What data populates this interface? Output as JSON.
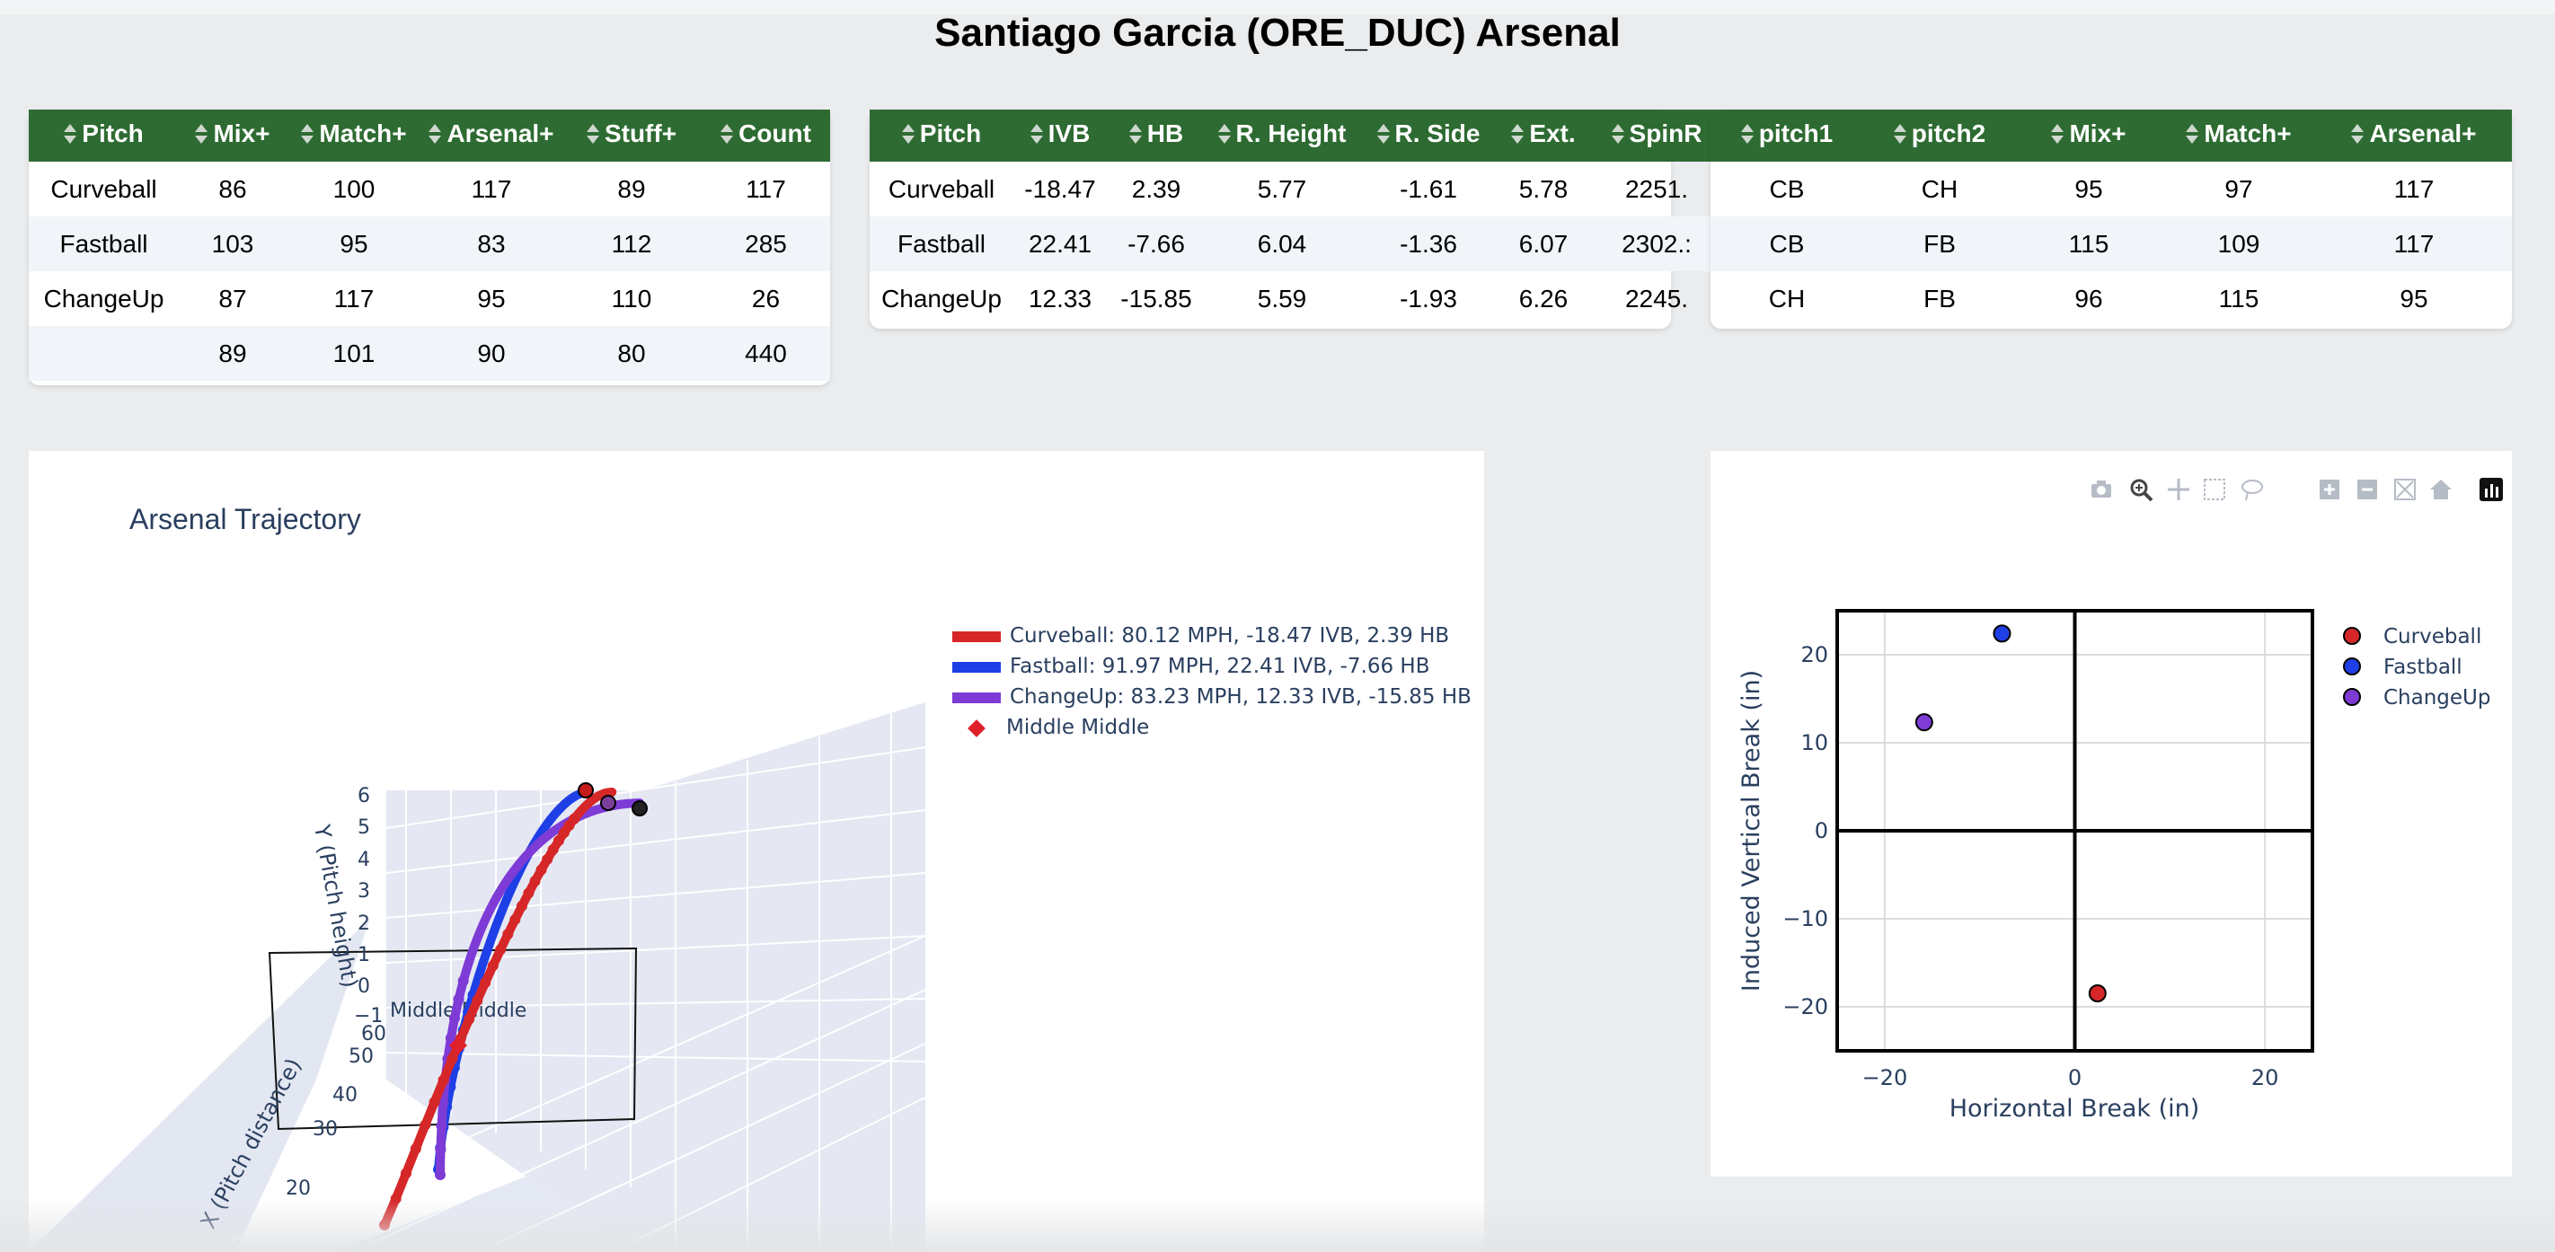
{
  "page": {
    "title": "Santiago Garcia (ORE_DUC) Arsenal"
  },
  "table1": {
    "headers": [
      "Pitch",
      "Mix+",
      "Match+",
      "Arsenal+",
      "Stuff+",
      "Count"
    ],
    "rows": [
      [
        "Curveball",
        "86",
        "100",
        "117",
        "89",
        "117"
      ],
      [
        "Fastball",
        "103",
        "95",
        "83",
        "112",
        "285"
      ],
      [
        "ChangeUp",
        "87",
        "117",
        "95",
        "110",
        "26"
      ],
      [
        "",
        "89",
        "101",
        "90",
        "80",
        "440"
      ]
    ]
  },
  "table2": {
    "headers": [
      "Pitch",
      "IVB",
      "HB",
      "R. Height",
      "R. Side",
      "Ext.",
      "SpinR"
    ],
    "rows": [
      [
        "Curveball",
        "-18.47",
        "2.39",
        "5.77",
        "-1.61",
        "5.78",
        "2251."
      ],
      [
        "Fastball",
        "22.41",
        "-7.66",
        "6.04",
        "-1.36",
        "6.07",
        "2302.:"
      ],
      [
        "ChangeUp",
        "12.33",
        "-15.85",
        "5.59",
        "-1.93",
        "6.26",
        "2245."
      ]
    ]
  },
  "table3": {
    "headers": [
      "pitch1",
      "pitch2",
      "Mix+",
      "Match+",
      "Arsenal+"
    ],
    "rows": [
      [
        "CB",
        "CH",
        "95",
        "97",
        "117"
      ],
      [
        "CB",
        "FB",
        "115",
        "109",
        "117"
      ],
      [
        "CH",
        "FB",
        "96",
        "115",
        "95"
      ]
    ]
  },
  "trajectory": {
    "title": "Arsenal Trajectory",
    "legend": [
      {
        "label": "Curveball: 80.12 MPH, -18.47 IVB, 2.39 HB",
        "color": "#d62728"
      },
      {
        "label": "Fastball: 91.97 MPH, 22.41 IVB, -7.66 HB",
        "color": "#1f3fe6"
      },
      {
        "label": "ChangeUp: 83.23 MPH, 12.33 IVB, -15.85 HB",
        "color": "#7e3bd6"
      },
      {
        "label": "Middle Middle",
        "color": "#e0202a"
      }
    ],
    "y_axis_title": "Y (Pitch height)",
    "x_axis_title": "X (Pitch distance)",
    "y_ticks": [
      "6",
      "5",
      "4",
      "3",
      "2",
      "1",
      "0",
      "−1"
    ],
    "x_ticks": [
      "60",
      "50",
      "40",
      "30",
      "20"
    ],
    "zone_label": "Middle Middle"
  },
  "chart_data": {
    "type": "scatter",
    "xlabel": "Horizontal Break (in)",
    "ylabel": "Induced Vertical Break (in)",
    "xlim": [
      -25,
      25
    ],
    "ylim": [
      -25,
      25
    ],
    "x_ticks": [
      "−20",
      "0",
      "20"
    ],
    "y_ticks": [
      "20",
      "10",
      "0",
      "−10",
      "−20"
    ],
    "grid": true,
    "legend_position": "right",
    "series": [
      {
        "name": "Curveball",
        "color": "#d62728",
        "x": [
          2.39
        ],
        "y": [
          -18.47
        ]
      },
      {
        "name": "Fastball",
        "color": "#1f3fe6",
        "x": [
          -7.66
        ],
        "y": [
          22.41
        ]
      },
      {
        "name": "ChangeUp",
        "color": "#7e3bd6",
        "x": [
          -15.85
        ],
        "y": [
          12.33
        ]
      }
    ]
  },
  "modebar": [
    "camera-icon",
    "zoom-icon",
    "pan-icon",
    "box-select-icon",
    "lasso-icon",
    "zoom-in-icon",
    "zoom-out-icon",
    "autoscale-icon",
    "reset-axes-icon",
    "plotly-logo-icon"
  ]
}
